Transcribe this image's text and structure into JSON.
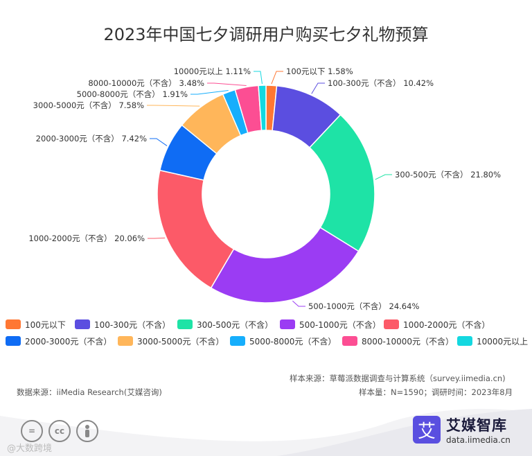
{
  "title": "2023年中国七夕调研用户购买七夕礼物预算",
  "chart_data": {
    "type": "pie",
    "title": "2023年中国七夕调研用户购买七夕礼物预算",
    "donut": true,
    "legend_position": "bottom",
    "slices": [
      {
        "label": "100元以下",
        "value": 1.58,
        "value_label": "1.58%",
        "color": "#ff7733"
      },
      {
        "label": "100-300元（不含）",
        "value": 10.42,
        "value_label": "10.42%",
        "color": "#5b4ee0"
      },
      {
        "label": "300-500元（不含）",
        "value": 21.8,
        "value_label": "21.80%",
        "color": "#1ee3a6"
      },
      {
        "label": "500-1000元（不含）",
        "value": 24.64,
        "value_label": "24.64%",
        "color": "#9b3cf3"
      },
      {
        "label": "1000-2000元（不含）",
        "value": 20.06,
        "value_label": "20.06%",
        "color": "#fc5a68"
      },
      {
        "label": "2000-3000元（不含）",
        "value": 7.42,
        "value_label": "7.42%",
        "color": "#0f6cf4"
      },
      {
        "label": "3000-5000元（不含）",
        "value": 7.58,
        "value_label": "7.58%",
        "color": "#ffb65a"
      },
      {
        "label": "5000-8000元（不含）",
        "value": 1.91,
        "value_label": "1.91%",
        "color": "#16aefc"
      },
      {
        "label": "8000-10000元（不含）",
        "value": 3.48,
        "value_label": "3.48%",
        "color": "#fc4e93"
      },
      {
        "label": "10000元以上",
        "value": 1.11,
        "value_label": "1.11%",
        "color": "#14d8e0"
      }
    ]
  },
  "notes": {
    "sample_source": "样本来源：草莓派数据调查与计算系统（survey.iimedia.cn)",
    "data_source": "数据来源：iiMedia Research(艾媒咨询)",
    "sample_size": "样本量：N=1590；调研时间：2023年8月"
  },
  "brand": {
    "logo_char": "艾",
    "name": "艾媒智库",
    "url": "data.iimedia.cn"
  },
  "watermark": "@大数跨境",
  "license_icons": [
    "equals-icon",
    "cc-icon",
    "person-icon"
  ]
}
